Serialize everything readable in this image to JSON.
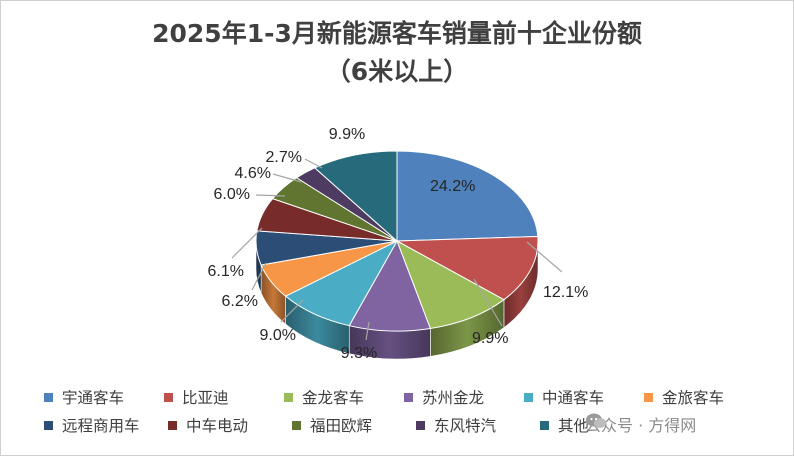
{
  "chart_data": {
    "type": "pie",
    "title": "2025年1-3月新能源客车销量前十企业份额",
    "subtitle": "（6米以上）",
    "legend_position": "bottom",
    "slices": [
      {
        "name": "宇通客车",
        "value": 24.2,
        "label": "24.2%",
        "color": "#4F81BD"
      },
      {
        "name": "比亚迪",
        "value": 12.1,
        "label": "12.1%",
        "color": "#C0504D"
      },
      {
        "name": "金龙客车",
        "value": 9.9,
        "label": "9.9%",
        "color": "#9BBB59"
      },
      {
        "name": "苏州金龙",
        "value": 9.3,
        "label": "9.3%",
        "color": "#8064A2"
      },
      {
        "name": "中通客车",
        "value": 9.0,
        "label": "9.0%",
        "color": "#4BACC6"
      },
      {
        "name": "金旅客车",
        "value": 6.2,
        "label": "6.2%",
        "color": "#F79646"
      },
      {
        "name": "远程商用车",
        "value": 6.1,
        "label": "6.1%",
        "color": "#2C4D75"
      },
      {
        "name": "中车电动",
        "value": 6.0,
        "label": "6.0%",
        "color": "#772C2A"
      },
      {
        "name": "福田欧辉",
        "value": 4.6,
        "label": "4.6%",
        "color": "#5F7530"
      },
      {
        "name": "东风特汽",
        "value": 2.7,
        "label": "2.7%",
        "color": "#4D3B62"
      },
      {
        "name": "其他",
        "value": 9.9,
        "label": "9.9%",
        "color": "#276A7C"
      }
    ]
  },
  "watermark": "公众号 · 方得网"
}
